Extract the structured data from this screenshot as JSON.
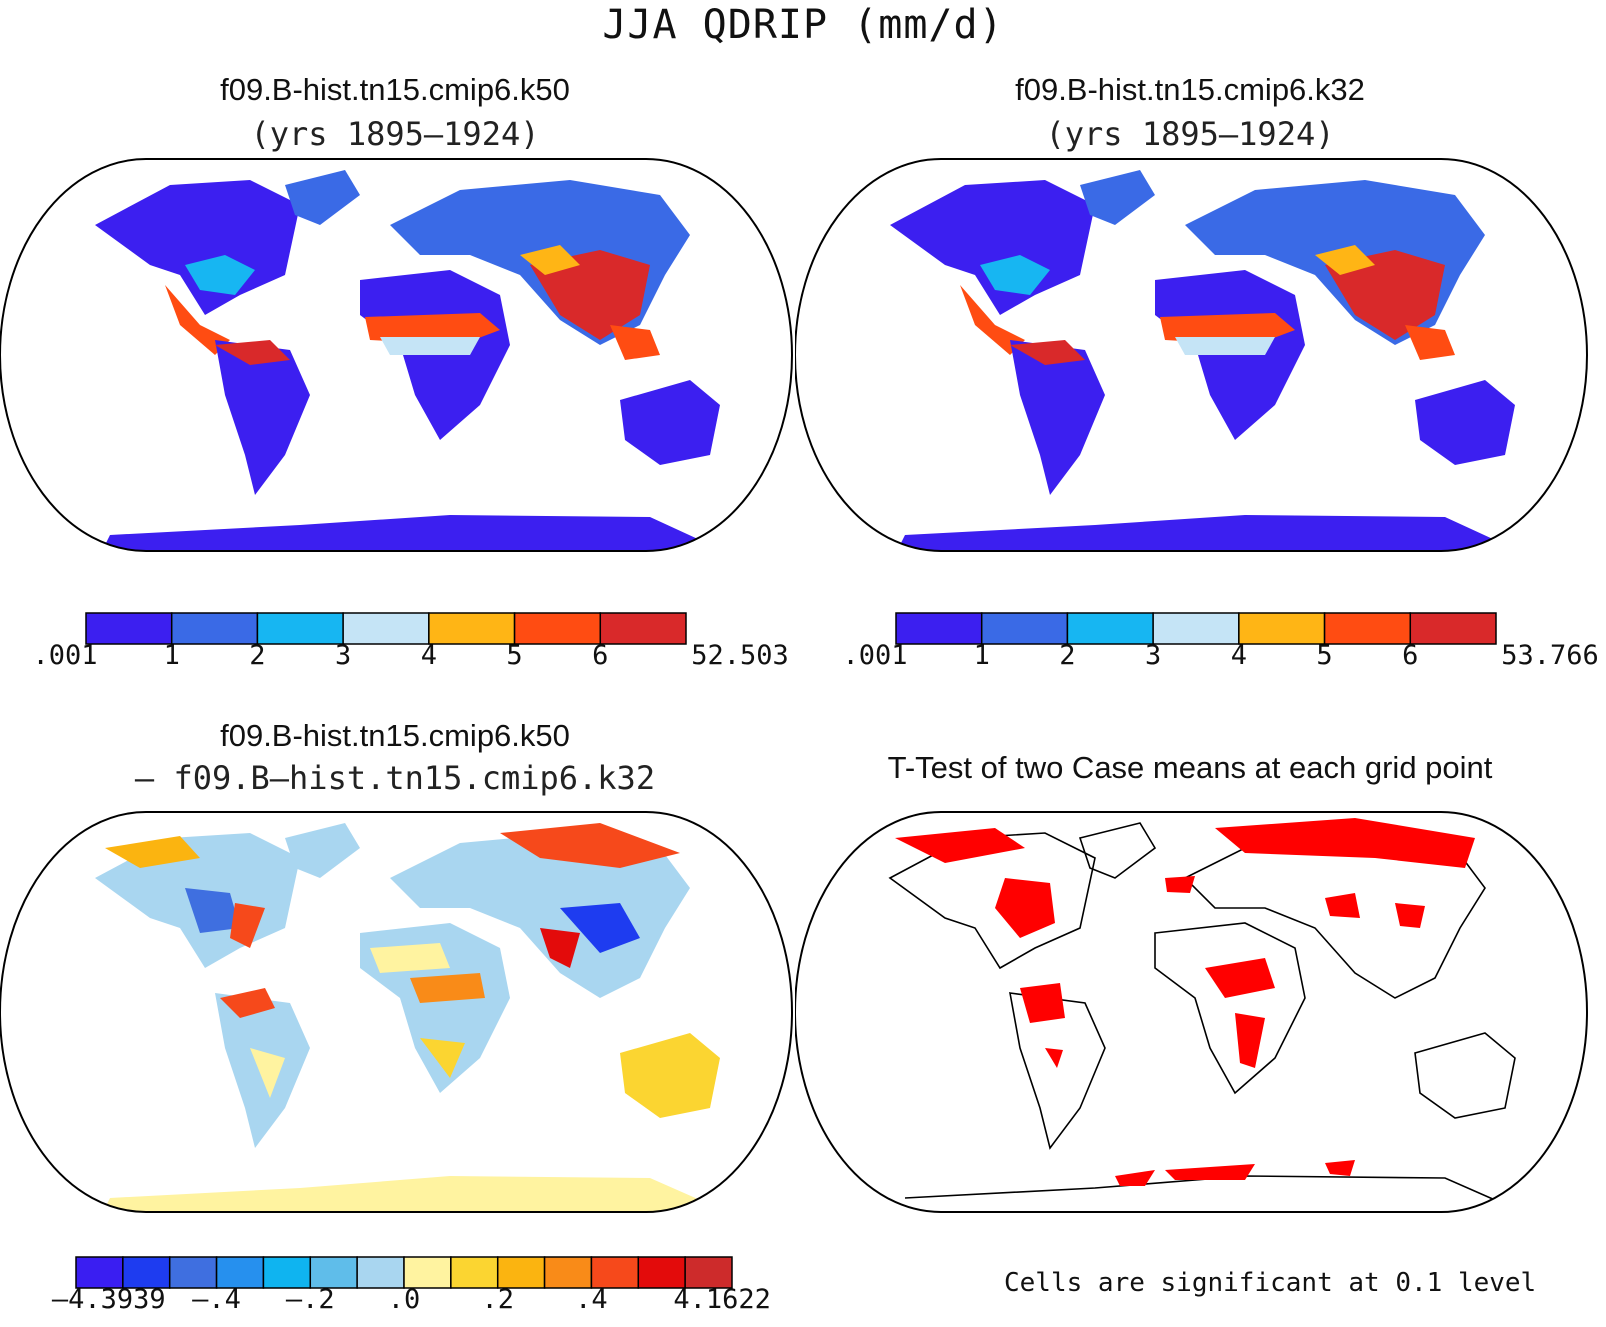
{
  "main_title": "JJA QDRIP (mm/d)",
  "panels": {
    "top_left": {
      "title": "f09.B-hist.tn15.cmip6.k50",
      "subtitle": "(yrs 1895–1924)"
    },
    "top_right": {
      "title": "f09.B-hist.tn15.cmip6.k32",
      "subtitle": "(yrs 1895–1924)"
    },
    "bottom_left": {
      "title": "f09.B-hist.tn15.cmip6.k50",
      "subtitle": "– f09.B–hist.tn15.cmip6.k32"
    },
    "bottom_right": {
      "title": "T-Test of two Case means at each grid point",
      "note": "Cells are significant at 0.1 level"
    }
  },
  "colorbars": {
    "top_left": {
      "colors": [
        "#3c1ff0",
        "#3a6ae6",
        "#17b6f2",
        "#c5e4f6",
        "#ffb515",
        "#ff4c12",
        "#d9292a"
      ],
      "labels": [
        ".001",
        "1",
        "2",
        "3",
        "4",
        "5",
        "6",
        "52.503"
      ]
    },
    "top_right": {
      "colors": [
        "#3c1ff0",
        "#3a6ae6",
        "#17b6f2",
        "#c5e4f6",
        "#ffb515",
        "#ff4c12",
        "#d9292a"
      ],
      "labels": [
        ".001",
        "1",
        "2",
        "3",
        "4",
        "5",
        "6",
        "53.766"
      ]
    },
    "bottom_left": {
      "colors": [
        "#3a1ef2",
        "#1e3cf0",
        "#3f6fe0",
        "#2690ee",
        "#0fb4f0",
        "#5fbdea",
        "#a9d6f0",
        "#fff3a0",
        "#fbd531",
        "#fbb410",
        "#f98b18",
        "#f6491b",
        "#e30b0b",
        "#cd2b2b"
      ],
      "labels": [
        "–4.3939",
        "–.4",
        "–.2",
        ".0",
        ".2",
        ".4",
        "4.1622"
      ]
    }
  },
  "legend_colors": {
    "land_low": "#3c1ff0",
    "significant": "#ff0000",
    "diff_neutral": "#a9d6f0"
  }
}
